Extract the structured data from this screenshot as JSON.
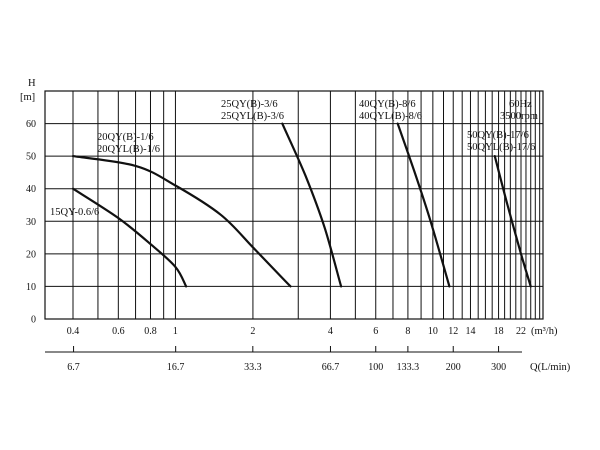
{
  "chart_data": {
    "type": "line",
    "y_axis": {
      "label_top": "H",
      "label_unit": "[m]",
      "range": [
        0,
        70
      ],
      "ticks": [
        "0",
        "10",
        "20",
        "30",
        "40",
        "50",
        "60"
      ]
    },
    "x_axis": {
      "scale": "log",
      "unit": "m³/h",
      "unit_label": "(m³/h)",
      "range": [
        0.3,
        30
      ],
      "ticks": [
        {
          "v": 0.4,
          "t": "0.4"
        },
        {
          "v": 0.6,
          "t": "0.6"
        },
        {
          "v": 0.8,
          "t": "0.8"
        },
        {
          "v": 1,
          "t": "1"
        },
        {
          "v": 2,
          "t": "2"
        },
        {
          "v": 4,
          "t": "4"
        },
        {
          "v": 6,
          "t": "6"
        },
        {
          "v": 8,
          "t": "8"
        },
        {
          "v": 10,
          "t": "10"
        },
        {
          "v": 12,
          "t": "12"
        },
        {
          "v": 14,
          "t": "14"
        },
        {
          "v": 18,
          "t": "18"
        },
        {
          "v": 22,
          "t": "22"
        }
      ]
    },
    "x_axis_secondary": {
      "unit_label": "Q(L/min)",
      "ticks": [
        {
          "v": 6.7,
          "t": "6.7"
        },
        {
          "v": 16.7,
          "t": "16.7"
        },
        {
          "v": 33.3,
          "t": "33.3"
        },
        {
          "v": 66.7,
          "t": "66.7"
        },
        {
          "v": 100,
          "t": "100"
        },
        {
          "v": 133.3,
          "t": "133.3"
        },
        {
          "v": 200,
          "t": "200"
        },
        {
          "v": 300,
          "t": "300"
        }
      ]
    },
    "gridlines_x": [
      0.4,
      0.5,
      0.6,
      0.7,
      0.8,
      0.9,
      1,
      2,
      3,
      4,
      5,
      6,
      7,
      8,
      9,
      10,
      11,
      12,
      13,
      14,
      15,
      16,
      17,
      18,
      19,
      20,
      21,
      22,
      23,
      24,
      25,
      26
    ],
    "gridlines_y": [
      10,
      20,
      30,
      40,
      50,
      60
    ],
    "annotation": {
      "line1": "60Hz",
      "line2": "3500rpm"
    },
    "series": [
      {
        "name": "15QY-0.6/6",
        "points": [
          [
            0.4,
            40
          ],
          [
            0.6,
            31
          ],
          [
            0.8,
            23
          ],
          [
            1.0,
            16
          ],
          [
            1.1,
            10
          ]
        ]
      },
      {
        "name": "20QY(B)-1/6 20QYL(B)-1/6",
        "points": [
          [
            0.4,
            50
          ],
          [
            0.7,
            47
          ],
          [
            1.0,
            41
          ],
          [
            1.5,
            32
          ],
          [
            2.0,
            22
          ],
          [
            2.5,
            14
          ],
          [
            2.8,
            10
          ]
        ]
      },
      {
        "name": "25QY(B)-3/6 25QYL(B)-3/6",
        "points": [
          [
            2.6,
            60
          ],
          [
            3.2,
            44
          ],
          [
            3.8,
            28
          ],
          [
            4.4,
            10
          ]
        ]
      },
      {
        "name": "40QY(B)-8/6 40QYL(B)-8/6",
        "points": [
          [
            7.3,
            60
          ],
          [
            8.5,
            45
          ],
          [
            9.8,
            30
          ],
          [
            11.6,
            10
          ]
        ]
      },
      {
        "name": "50QY(B)-17/6 50QYL(B)-17/6",
        "points": [
          [
            17.4,
            50
          ],
          [
            19.5,
            35
          ],
          [
            22.0,
            20
          ],
          [
            24.0,
            10
          ]
        ]
      }
    ],
    "labels": {
      "s15": "15QY-0.6/6",
      "s20a": "20QY(B)-1/6",
      "s20b": "20QYL(B)-1/6",
      "s25a": "25QY(B)-3/6",
      "s25b": "25QYL(B)-3/6",
      "s40a": "40QY(B)-8/6",
      "s40b": "40QYL(B)-8/6",
      "s50a": "50QY(B)-17/6",
      "s50b": "50QYL(B)-17/6"
    }
  }
}
